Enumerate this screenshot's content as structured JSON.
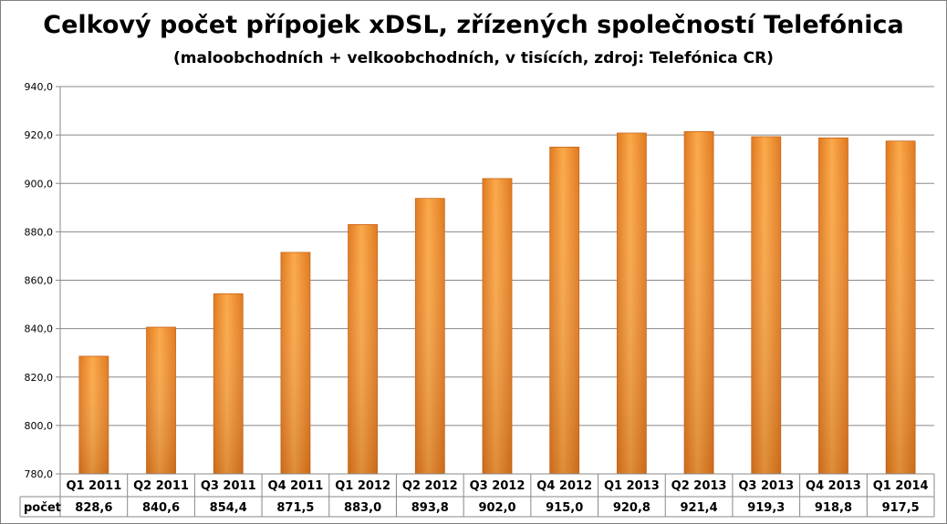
{
  "chart_data": {
    "type": "bar",
    "title": "Celkový počet přípojek xDSL, zřízených společností Telefónica",
    "subtitle": "(maloobchodních + velkoobchodních, v tisících,  zdroj: Telefónica CR)",
    "categories": [
      "Q1 2011",
      "Q2 2011",
      "Q3 2011",
      "Q4 2011",
      "Q1 2012",
      "Q2 2012",
      "Q3 2012",
      "Q4 2012",
      "Q1 2013",
      "Q2 2013",
      "Q3 2013",
      "Q4 2013",
      "Q1 2014"
    ],
    "series": [
      {
        "name": "počet",
        "values": [
          828.6,
          840.6,
          854.4,
          871.5,
          883.0,
          893.8,
          902.0,
          915.0,
          920.8,
          921.4,
          919.3,
          918.8,
          917.5
        ]
      }
    ],
    "value_labels": [
      "828,6",
      "840,6",
      "854,4",
      "871,5",
      "883,0",
      "893,8",
      "902,0",
      "915,0",
      "920,8",
      "921,4",
      "919,3",
      "918,8",
      "917,5"
    ],
    "yticks": [
      "780,0",
      "800,0",
      "820,0",
      "840,0",
      "860,0",
      "880,0",
      "900,0",
      "920,0",
      "940,0"
    ],
    "ylim": [
      780,
      940
    ],
    "grid": true,
    "legend": "data-table",
    "bar_color": "#F7962E",
    "bar_dark": "#D9711C"
  }
}
